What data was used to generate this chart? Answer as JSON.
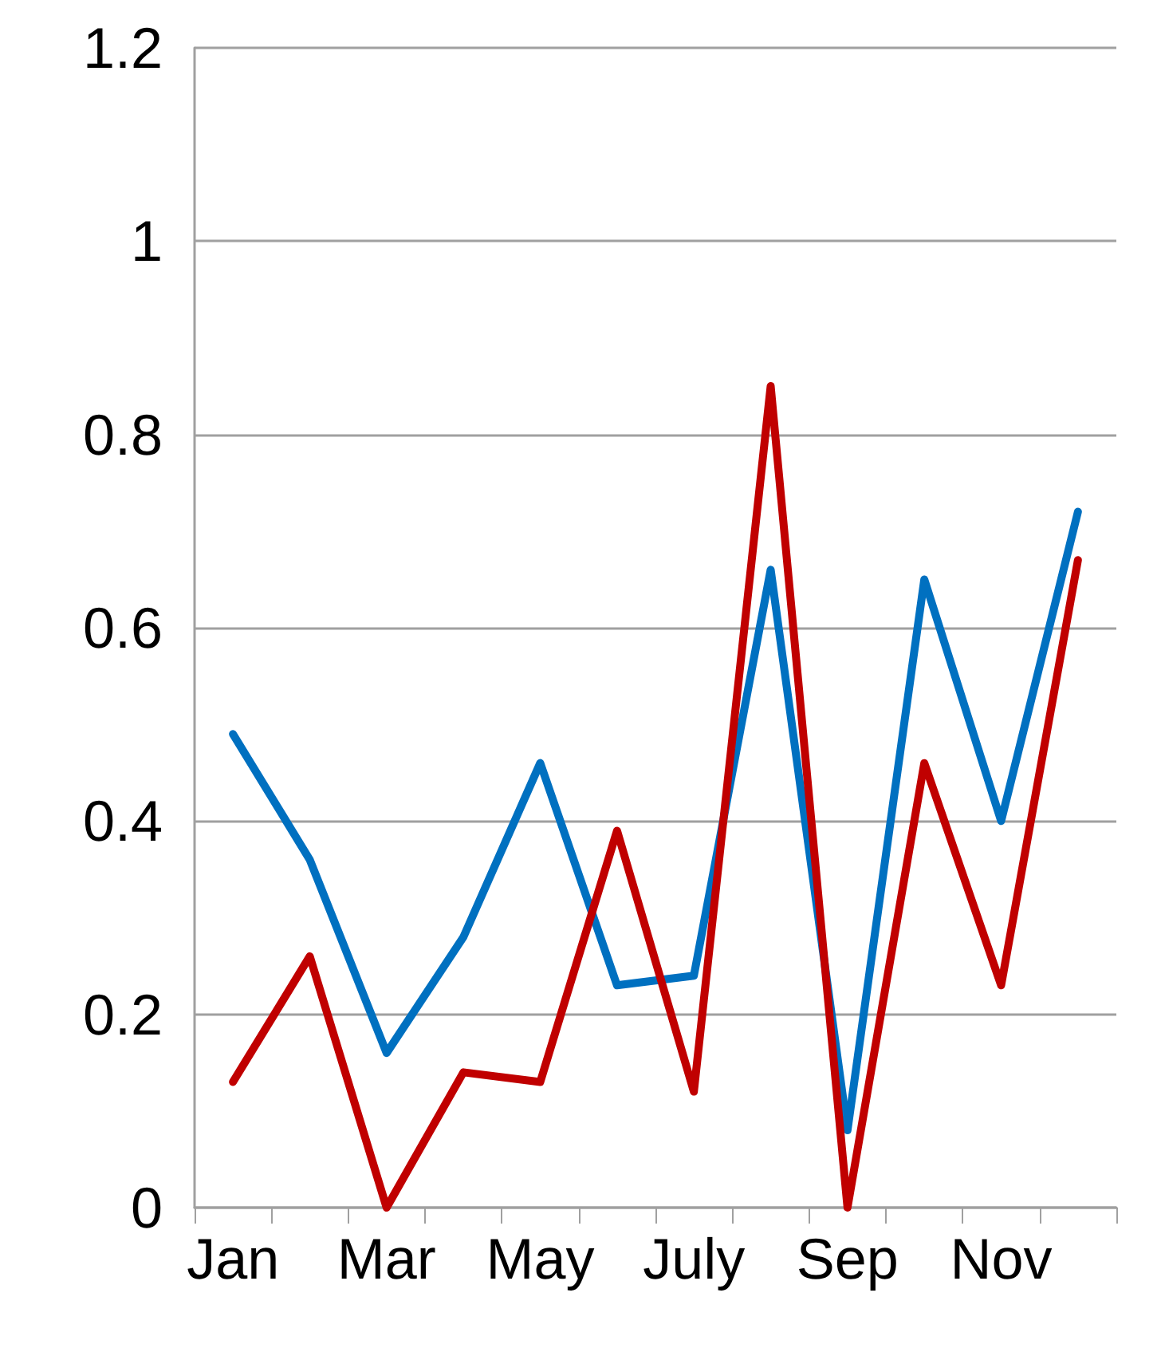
{
  "chart_data": {
    "type": "line",
    "categories": [
      "Jan",
      null,
      "Mar",
      null,
      "May",
      null,
      "July",
      null,
      "Sep",
      null,
      "Nov",
      null
    ],
    "series": [
      {
        "color": "#0070c0",
        "values": [
          0.49,
          0.36,
          0.16,
          0.28,
          0.46,
          0.23,
          0.24,
          0.66,
          0.08,
          0.65,
          0.4,
          0.72
        ]
      },
      {
        "color": "#c00000",
        "values": [
          0.13,
          0.26,
          0.0,
          0.14,
          0.13,
          0.39,
          0.12,
          0.85,
          0.0,
          0.46,
          0.23,
          0.67
        ]
      }
    ],
    "ylim": [
      0,
      1.2
    ],
    "yticks": [
      0,
      0.2,
      0.4,
      0.6,
      0.8,
      1,
      1.2
    ],
    "grid": "y",
    "marker": "none",
    "line_style": "solid"
  }
}
